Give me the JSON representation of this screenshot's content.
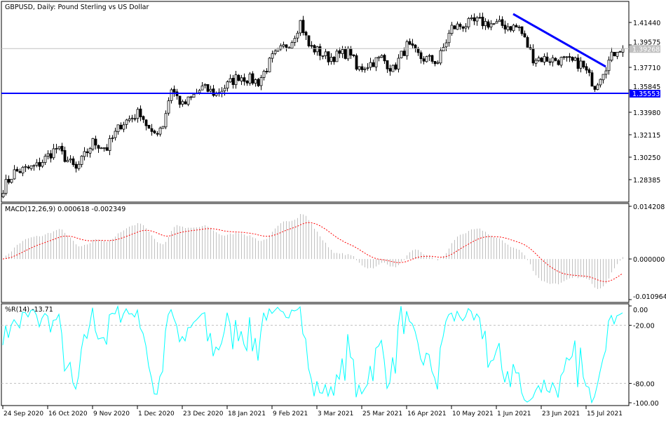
{
  "header": {
    "title": "GBPUSD, Daily:  Pound Sterling vs US Dollar"
  },
  "chart_data": [
    {
      "type": "candlestick",
      "name": "main",
      "symbol": "GBPUSD",
      "timeframe": "Daily",
      "ylim": [
        1.2745,
        1.4237
      ],
      "y_ticks": [
        "1.41440",
        "1.39575",
        "1.37710",
        "1.35845",
        "1.33980",
        "1.32115",
        "1.30250",
        "1.28385"
      ],
      "x_ticks": [
        "24 Sep 2020",
        "16 Oct 2020",
        "9 Nov 2020",
        "1 Dec 2020",
        "23 Dec 2020",
        "18 Jan 2021",
        "9 Feb 2021",
        "3 Mar 2021",
        "25 Mar 2021",
        "16 Apr 2021",
        "10 May 2021",
        "1 Jun 2021",
        "23 Jun 2021",
        "15 Jul 2021"
      ],
      "close_waypoints": [
        {
          "date": "2020-09-24",
          "close": 1.277
        },
        {
          "date": "2020-09-30",
          "close": 1.29
        },
        {
          "date": "2020-10-12",
          "close": 1.295
        },
        {
          "date": "2020-10-21",
          "close": 1.31
        },
        {
          "date": "2020-10-30",
          "close": 1.292
        },
        {
          "date": "2020-11-09",
          "close": 1.315
        },
        {
          "date": "2020-11-16",
          "close": 1.31
        },
        {
          "date": "2020-11-23",
          "close": 1.33
        },
        {
          "date": "2020-12-02",
          "close": 1.34
        },
        {
          "date": "2020-12-08",
          "close": 1.32
        },
        {
          "date": "2020-12-14",
          "close": 1.33
        },
        {
          "date": "2020-12-17",
          "close": 1.36
        },
        {
          "date": "2020-12-23",
          "close": 1.345
        },
        {
          "date": "2021-01-05",
          "close": 1.36
        },
        {
          "date": "2021-01-12",
          "close": 1.355
        },
        {
          "date": "2021-01-22",
          "close": 1.37
        },
        {
          "date": "2021-02-02",
          "close": 1.365
        },
        {
          "date": "2021-02-09",
          "close": 1.385
        },
        {
          "date": "2021-02-18",
          "close": 1.4
        },
        {
          "date": "2021-02-23",
          "close": 1.415
        },
        {
          "date": "2021-02-26",
          "close": 1.395
        },
        {
          "date": "2021-03-09",
          "close": 1.385
        },
        {
          "date": "2021-03-19",
          "close": 1.39
        },
        {
          "date": "2021-03-23",
          "close": 1.375
        },
        {
          "date": "2021-04-05",
          "close": 1.385
        },
        {
          "date": "2021-04-09",
          "close": 1.375
        },
        {
          "date": "2021-04-16",
          "close": 1.395
        },
        {
          "date": "2021-04-23",
          "close": 1.385
        },
        {
          "date": "2021-05-03",
          "close": 1.382
        },
        {
          "date": "2021-05-10",
          "close": 1.41
        },
        {
          "date": "2021-05-21",
          "close": 1.415
        },
        {
          "date": "2021-06-11",
          "close": 1.41
        },
        {
          "date": "2021-06-18",
          "close": 1.385
        },
        {
          "date": "2021-07-02",
          "close": 1.383
        },
        {
          "date": "2021-07-13",
          "close": 1.38
        },
        {
          "date": "2021-07-20",
          "close": 1.362
        },
        {
          "date": "2021-07-23",
          "close": 1.375
        },
        {
          "date": "2021-07-30",
          "close": 1.393
        },
        {
          "date": "2021-08-03",
          "close": 1.39268
        }
      ],
      "current_price": {
        "label": "1.39268",
        "value": 1.39268,
        "color": "#c0c0c0"
      },
      "horizontal_line": {
        "label": "1.35553",
        "value": 1.35553,
        "color": "#0000ff"
      },
      "trendline": {
        "from": {
          "date": "2021-06-09",
          "price": 1.4214
        },
        "to": {
          "date": "2021-07-26",
          "price": 1.3777
        },
        "color": "#0000ff"
      },
      "colors": {
        "bull": "#ffffff",
        "bear": "#000000",
        "wick": "#000000"
      }
    },
    {
      "type": "histogram+line",
      "name": "macd",
      "label": "MACD(12,26,9) 0.000618 -0.002349",
      "params": [
        12,
        26,
        9
      ],
      "ylim": [
        -0.010964,
        0.014208
      ],
      "y_ticks": [
        "0.014208",
        "0.000000",
        "-0.010964"
      ],
      "colors": {
        "histogram": "#c0c0c0",
        "signal": "#ff0000"
      }
    },
    {
      "type": "line",
      "name": "williams-r",
      "label": "%R(14) -13.71",
      "period": 14,
      "ylim": [
        -100,
        0
      ],
      "y_ticks": [
        "0.00",
        "-20.00",
        "-80.00",
        "-100.00"
      ],
      "levels": [
        -20,
        -80
      ],
      "colors": {
        "line": "#00ffff",
        "levels": "#c0c0c0"
      }
    }
  ]
}
